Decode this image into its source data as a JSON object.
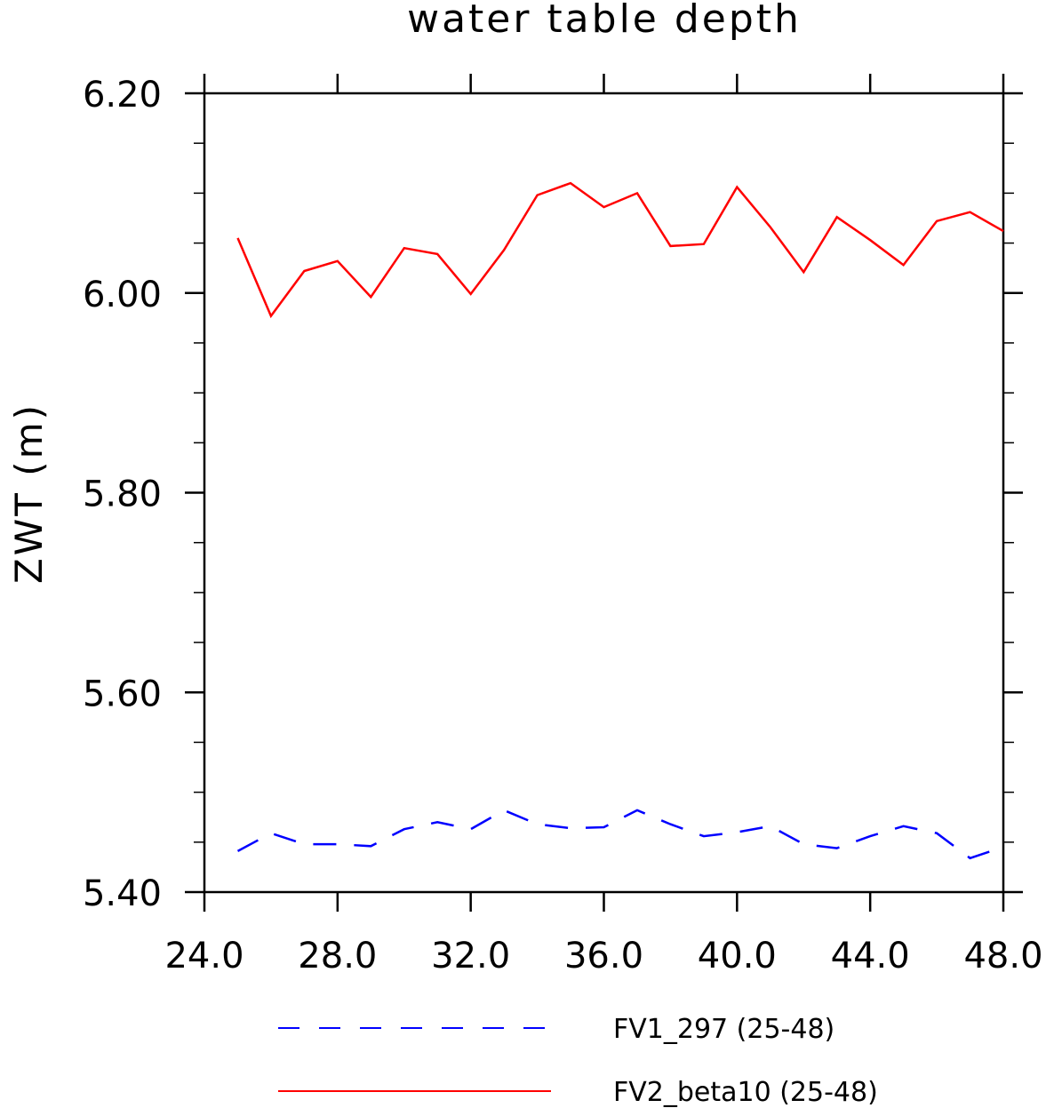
{
  "chart_data": {
    "type": "line",
    "title": "water table depth",
    "xlabel": "",
    "ylabel": "ZWT    (m)",
    "xlim": [
      24.0,
      48.0
    ],
    "ylim": [
      5.4,
      6.2
    ],
    "x_ticks": [
      "24.0",
      "28.0",
      "32.0",
      "36.0",
      "40.0",
      "44.0",
      "48.0"
    ],
    "y_ticks": [
      "5.40",
      "5.60",
      "5.80",
      "6.00",
      "6.20"
    ],
    "x": [
      25,
      26,
      27,
      28,
      29,
      30,
      31,
      32,
      33,
      34,
      35,
      36,
      37,
      38,
      39,
      40,
      41,
      42,
      43,
      44,
      45,
      46,
      47,
      48
    ],
    "series": [
      {
        "name": "FV1_297 (25-48)",
        "color": "#0000ff",
        "style": "dashed",
        "values": [
          5.441,
          5.459,
          5.448,
          5.448,
          5.446,
          5.463,
          5.47,
          5.463,
          5.482,
          5.468,
          5.464,
          5.465,
          5.482,
          5.468,
          5.456,
          5.46,
          5.466,
          5.448,
          5.444,
          5.456,
          5.466,
          5.459,
          5.434,
          5.445
        ]
      },
      {
        "name": "FV2_beta10 (25-48)",
        "color": "#ff0000",
        "style": "solid",
        "values": [
          6.055,
          5.977,
          6.022,
          6.032,
          5.996,
          6.045,
          6.039,
          5.999,
          6.043,
          6.098,
          6.11,
          6.086,
          6.1,
          6.047,
          6.049,
          6.106,
          6.066,
          6.021,
          6.076,
          6.053,
          6.028,
          6.072,
          6.081,
          6.062
        ]
      }
    ],
    "grid": false,
    "legend_position": "bottom"
  }
}
